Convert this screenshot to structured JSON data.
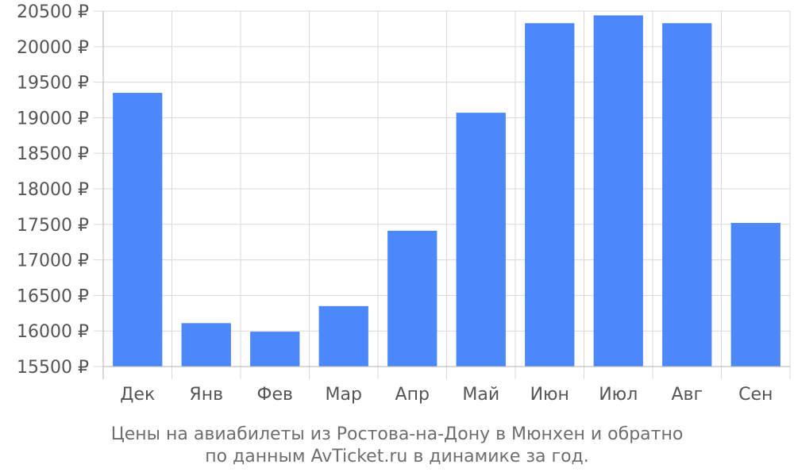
{
  "chart_data": {
    "type": "bar",
    "title_lines": [
      "Цены на авиабилеты из Ростова-на-Дону в Мюнхен и обратно",
      "по данным AvTicket.ru в динамике за год."
    ],
    "categories": [
      "Дек",
      "Янв",
      "Фев",
      "Мар",
      "Апр",
      "Май",
      "Июн",
      "Июл",
      "Авг",
      "Сен"
    ],
    "values": [
      19350,
      16110,
      15990,
      16350,
      17410,
      19070,
      20330,
      20440,
      20330,
      17520
    ],
    "ylim": [
      15500,
      20500
    ],
    "yticks": [
      15500,
      16000,
      16500,
      17000,
      17500,
      18000,
      18500,
      19000,
      19500,
      20000,
      20500
    ],
    "ytick_labels": [
      "15500 ₽",
      "16000 ₽",
      "16500 ₽",
      "17000 ₽",
      "17500 ₽",
      "18000 ₽",
      "18500 ₽",
      "19000 ₽",
      "19500 ₽",
      "20000 ₽",
      "20500 ₽"
    ],
    "grid": true,
    "bar_color": "#4d88fa",
    "grid_color": "#d9d9d9",
    "axis_color": "#b3b3b3"
  }
}
